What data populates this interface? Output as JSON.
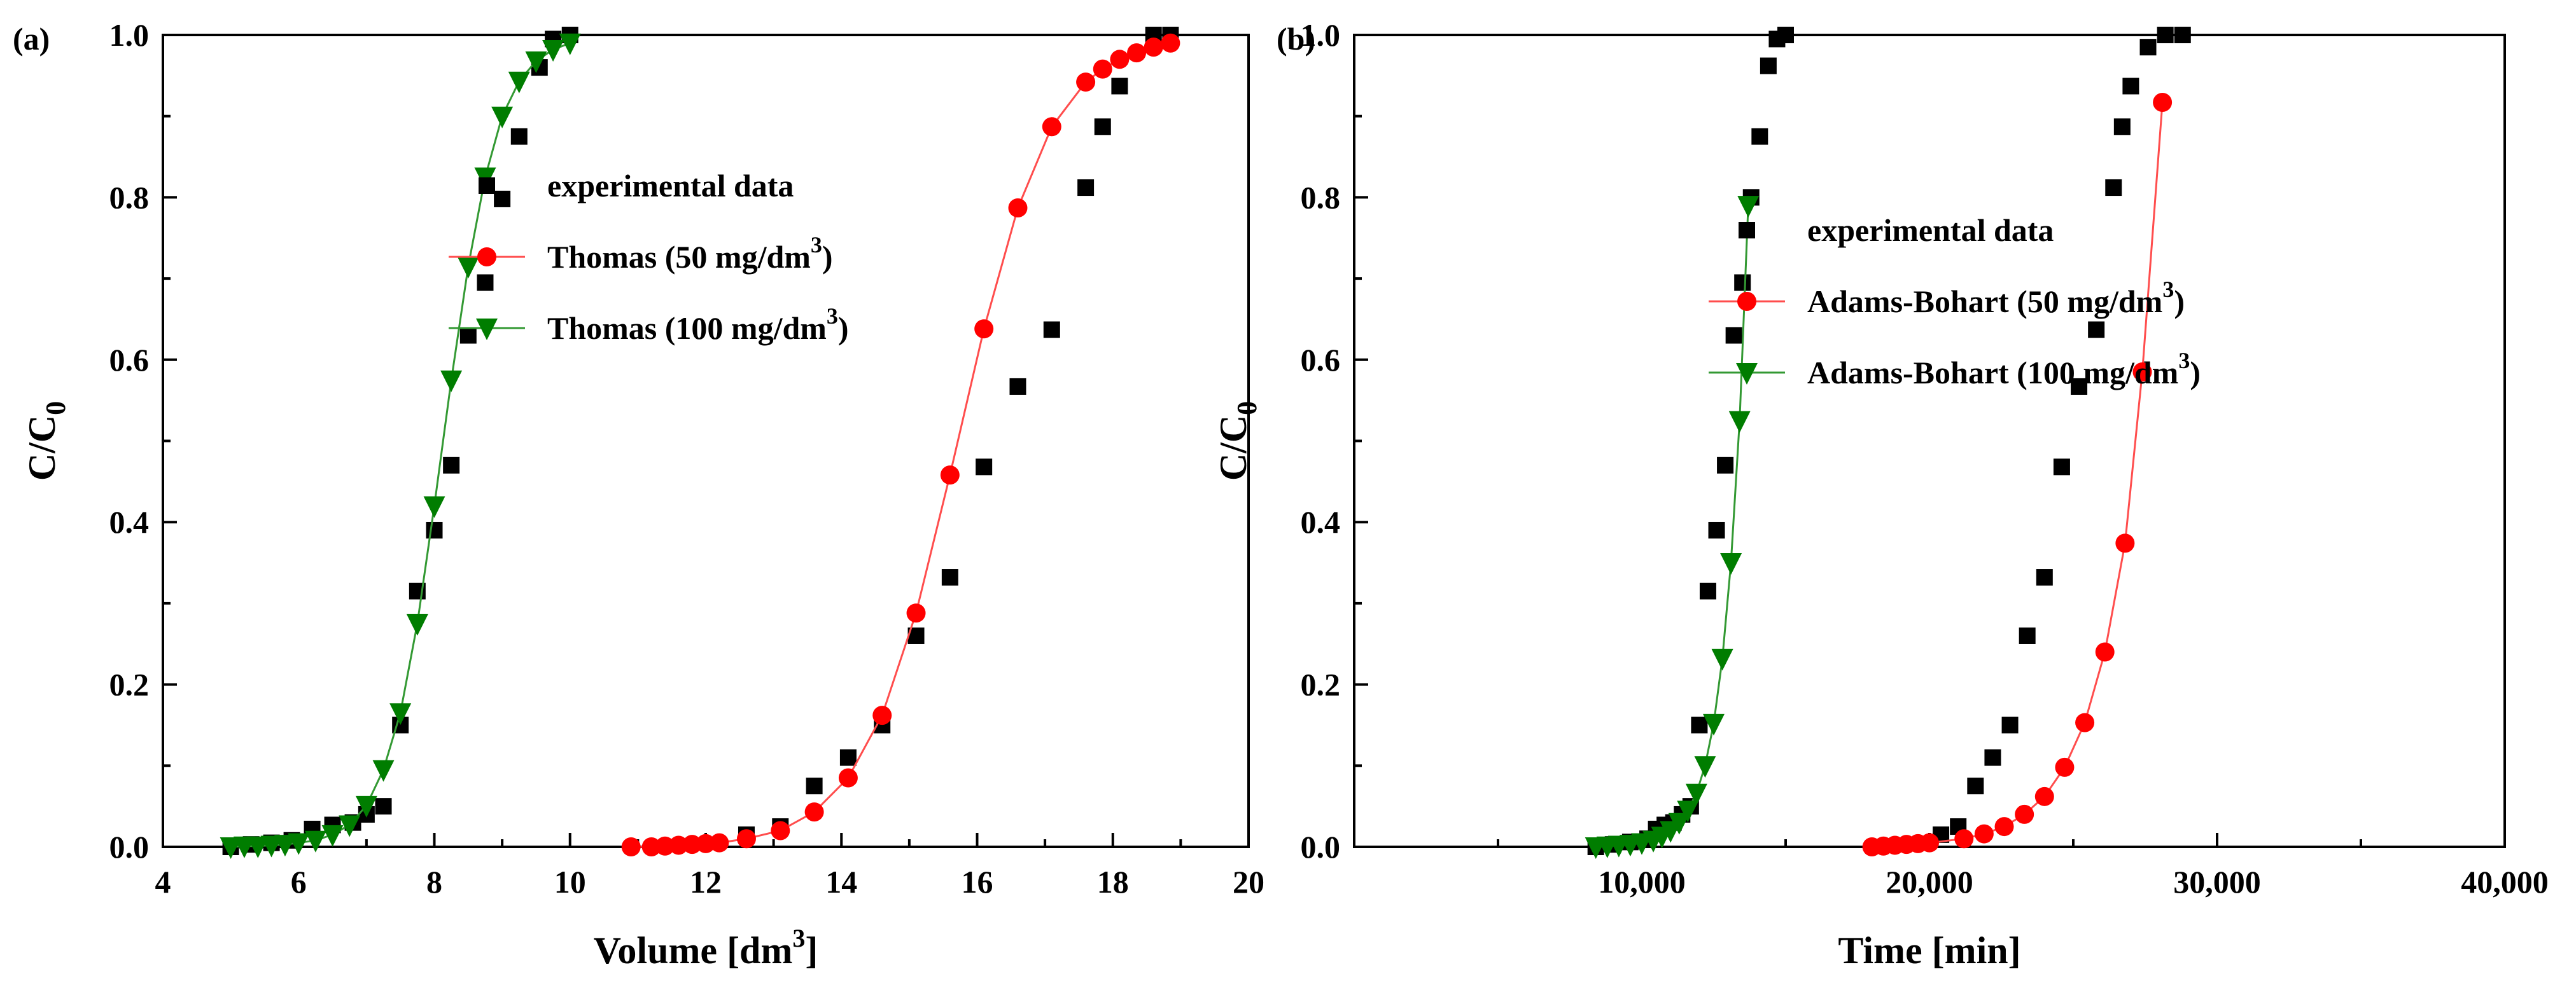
{
  "chart_data": [
    {
      "type": "scatter",
      "panel_label": "(a)",
      "xlabel": "Volume [dm",
      "xlabel_sup": "3",
      "xlabel_end": "]",
      "ylabel": "C/C",
      "ylabel_sub": "0",
      "xlim": [
        4,
        20
      ],
      "ylim": [
        0,
        1.0
      ],
      "xticks": [
        4,
        6,
        8,
        10,
        12,
        14,
        16,
        18,
        20
      ],
      "xtick_labels": [
        "4",
        "6",
        "8",
        "10",
        "12",
        "14",
        "16",
        "18",
        "20"
      ],
      "yticks": [
        0,
        0.2,
        0.4,
        0.6,
        0.8,
        1.0
      ],
      "ytick_labels": [
        "0.0",
        "0.2",
        "0.4",
        "0.6",
        "0.8",
        "1.0"
      ],
      "legend_position": "upper-center",
      "series": [
        {
          "name": "experimental data",
          "legend_label": "experimental data",
          "legend_sup": "",
          "legend_end": "",
          "marker": "square",
          "line": false,
          "color": "#000000",
          "points": [
            [
              5.0,
              0.0
            ],
            [
              5.3,
              0.003
            ],
            [
              5.6,
              0.005
            ],
            [
              5.9,
              0.008
            ],
            [
              6.2,
              0.022
            ],
            [
              6.5,
              0.027
            ],
            [
              6.8,
              0.03
            ],
            [
              7.0,
              0.04
            ],
            [
              7.25,
              0.05
            ],
            [
              7.5,
              0.15
            ],
            [
              7.75,
              0.315
            ],
            [
              8.0,
              0.39
            ],
            [
              8.25,
              0.47
            ],
            [
              8.5,
              0.63
            ],
            [
              8.75,
              0.695
            ],
            [
              9.0,
              0.798
            ],
            [
              9.25,
              0.875
            ],
            [
              9.55,
              0.96
            ],
            [
              9.75,
              0.995
            ],
            [
              10.0,
              1.0
            ],
            [
              12.6,
              0.015
            ],
            [
              13.1,
              0.025
            ],
            [
              13.6,
              0.075
            ],
            [
              14.1,
              0.11
            ],
            [
              14.6,
              0.15
            ],
            [
              15.1,
              0.26
            ],
            [
              15.6,
              0.332
            ],
            [
              16.1,
              0.468
            ],
            [
              16.6,
              0.567
            ],
            [
              17.1,
              0.637
            ],
            [
              17.6,
              0.812
            ],
            [
              17.85,
              0.887
            ],
            [
              18.1,
              0.937
            ],
            [
              18.6,
              1.0
            ],
            [
              18.85,
              1.0
            ]
          ]
        },
        {
          "name": "Thomas (50 mg/dm3)",
          "legend_label": "Thomas (50 mg/dm",
          "legend_sup": "3",
          "legend_end": ")",
          "marker": "circle",
          "line": true,
          "color": "#ff0000",
          "line_color": "#ff4d4d",
          "points": [
            [
              10.9,
              0.0
            ],
            [
              11.2,
              0.0
            ],
            [
              11.4,
              0.001
            ],
            [
              11.6,
              0.002
            ],
            [
              11.8,
              0.003
            ],
            [
              12.0,
              0.004
            ],
            [
              12.2,
              0.005
            ],
            [
              12.6,
              0.01
            ],
            [
              13.1,
              0.02
            ],
            [
              13.6,
              0.043
            ],
            [
              14.1,
              0.085
            ],
            [
              14.6,
              0.162
            ],
            [
              15.1,
              0.288
            ],
            [
              15.6,
              0.458
            ],
            [
              16.1,
              0.638
            ],
            [
              16.6,
              0.787
            ],
            [
              17.1,
              0.887
            ],
            [
              17.6,
              0.942
            ],
            [
              17.85,
              0.958
            ],
            [
              18.1,
              0.97
            ],
            [
              18.35,
              0.978
            ],
            [
              18.6,
              0.985
            ],
            [
              18.85,
              0.99
            ]
          ]
        },
        {
          "name": "Thomas (100 mg/dm3)",
          "legend_label": "Thomas (100 mg/dm",
          "legend_sup": "3",
          "legend_end": ")",
          "marker": "triangle-down",
          "line": true,
          "color": "#007d00",
          "line_color": "#339933",
          "points": [
            [
              5.0,
              0.0
            ],
            [
              5.2,
              0.001
            ],
            [
              5.4,
              0.001
            ],
            [
              5.6,
              0.002
            ],
            [
              5.8,
              0.003
            ],
            [
              6.0,
              0.005
            ],
            [
              6.25,
              0.008
            ],
            [
              6.5,
              0.015
            ],
            [
              6.75,
              0.027
            ],
            [
              7.0,
              0.051
            ],
            [
              7.25,
              0.095
            ],
            [
              7.5,
              0.165
            ],
            [
              7.75,
              0.275
            ],
            [
              8.0,
              0.42
            ],
            [
              8.25,
              0.575
            ],
            [
              8.5,
              0.715
            ],
            [
              8.75,
              0.825
            ],
            [
              9.0,
              0.9
            ],
            [
              9.25,
              0.943
            ],
            [
              9.5,
              0.968
            ],
            [
              9.75,
              0.982
            ],
            [
              10.0,
              0.99
            ]
          ]
        }
      ]
    },
    {
      "type": "scatter",
      "panel_label": "(b)",
      "xlabel": "Time [min]",
      "xlabel_sup": "",
      "xlabel_end": "",
      "ylabel": "C/C",
      "ylabel_sub": "0",
      "xlim": [
        0,
        40000
      ],
      "ylim": [
        0,
        1.0
      ],
      "xticks": [
        10000,
        20000,
        30000,
        40000
      ],
      "xtick_labels": [
        "10,000",
        "20,000",
        "30,000",
        "40,000"
      ],
      "yticks": [
        0,
        0.2,
        0.4,
        0.6,
        0.8,
        1.0
      ],
      "ytick_labels": [
        "0.0",
        "0.2",
        "0.4",
        "0.6",
        "0.8",
        "1.0"
      ],
      "legend_position": "center",
      "series": [
        {
          "name": "experimental data",
          "legend_label": "experimental data",
          "legend_sup": "",
          "legend_end": "",
          "marker": "square",
          "line": false,
          "color": "#000000",
          "points": [
            [
              8400,
              0.0
            ],
            [
              9000,
              0.003
            ],
            [
              9600,
              0.006
            ],
            [
              10200,
              0.01
            ],
            [
              10500,
              0.022
            ],
            [
              10800,
              0.027
            ],
            [
              11100,
              0.03
            ],
            [
              11400,
              0.04
            ],
            [
              11700,
              0.05
            ],
            [
              12000,
              0.15
            ],
            [
              12300,
              0.315
            ],
            [
              12600,
              0.39
            ],
            [
              12900,
              0.47
            ],
            [
              13200,
              0.63
            ],
            [
              13500,
              0.695
            ],
            [
              13800,
              0.8
            ],
            [
              14100,
              0.875
            ],
            [
              14400,
              0.962
            ],
            [
              14700,
              0.995
            ],
            [
              15000,
              1.0
            ],
            [
              20400,
              0.015
            ],
            [
              21000,
              0.025
            ],
            [
              21600,
              0.075
            ],
            [
              22200,
              0.11
            ],
            [
              22800,
              0.15
            ],
            [
              23400,
              0.26
            ],
            [
              24000,
              0.332
            ],
            [
              24600,
              0.468
            ],
            [
              25200,
              0.567
            ],
            [
              25800,
              0.637
            ],
            [
              26400,
              0.812
            ],
            [
              26700,
              0.887
            ],
            [
              27000,
              0.937
            ],
            [
              27600,
              0.985
            ],
            [
              28200,
              1.0
            ],
            [
              28800,
              1.0
            ]
          ]
        },
        {
          "name": "Adams-Bohart (50 mg/dm3)",
          "legend_label": "Adams-Bohart (50 mg/dm",
          "legend_sup": "3",
          "legend_end": ")",
          "marker": "circle",
          "line": true,
          "color": "#ff0000",
          "line_color": "#ff4d4d",
          "points": [
            [
              18000,
              0.0
            ],
            [
              18400,
              0.001
            ],
            [
              18800,
              0.002
            ],
            [
              19200,
              0.003
            ],
            [
              19600,
              0.004
            ],
            [
              20000,
              0.005
            ],
            [
              21200,
              0.01
            ],
            [
              21900,
              0.016
            ],
            [
              22600,
              0.025
            ],
            [
              23300,
              0.04
            ],
            [
              24000,
              0.062
            ],
            [
              24700,
              0.098
            ],
            [
              25400,
              0.153
            ],
            [
              26100,
              0.24
            ],
            [
              26800,
              0.374
            ],
            [
              27400,
              0.585
            ],
            [
              28100,
              0.917
            ]
          ]
        },
        {
          "name": "Adams-Bohart (100 mg/dm3)",
          "legend_label": "Adams-Bohart (100 mg/dm",
          "legend_sup": "3",
          "legend_end": ")",
          "marker": "triangle-down",
          "line": true,
          "color": "#007d00",
          "line_color": "#339933",
          "points": [
            [
              8400,
              0.0
            ],
            [
              8800,
              0.001
            ],
            [
              9200,
              0.002
            ],
            [
              9600,
              0.003
            ],
            [
              10000,
              0.005
            ],
            [
              10400,
              0.008
            ],
            [
              10700,
              0.013
            ],
            [
              11000,
              0.02
            ],
            [
              11300,
              0.03
            ],
            [
              11600,
              0.045
            ],
            [
              11900,
              0.066
            ],
            [
              12200,
              0.1
            ],
            [
              12500,
              0.152
            ],
            [
              12800,
              0.232
            ],
            [
              13100,
              0.35
            ],
            [
              13400,
              0.525
            ],
            [
              13700,
              0.79
            ]
          ]
        }
      ]
    }
  ]
}
